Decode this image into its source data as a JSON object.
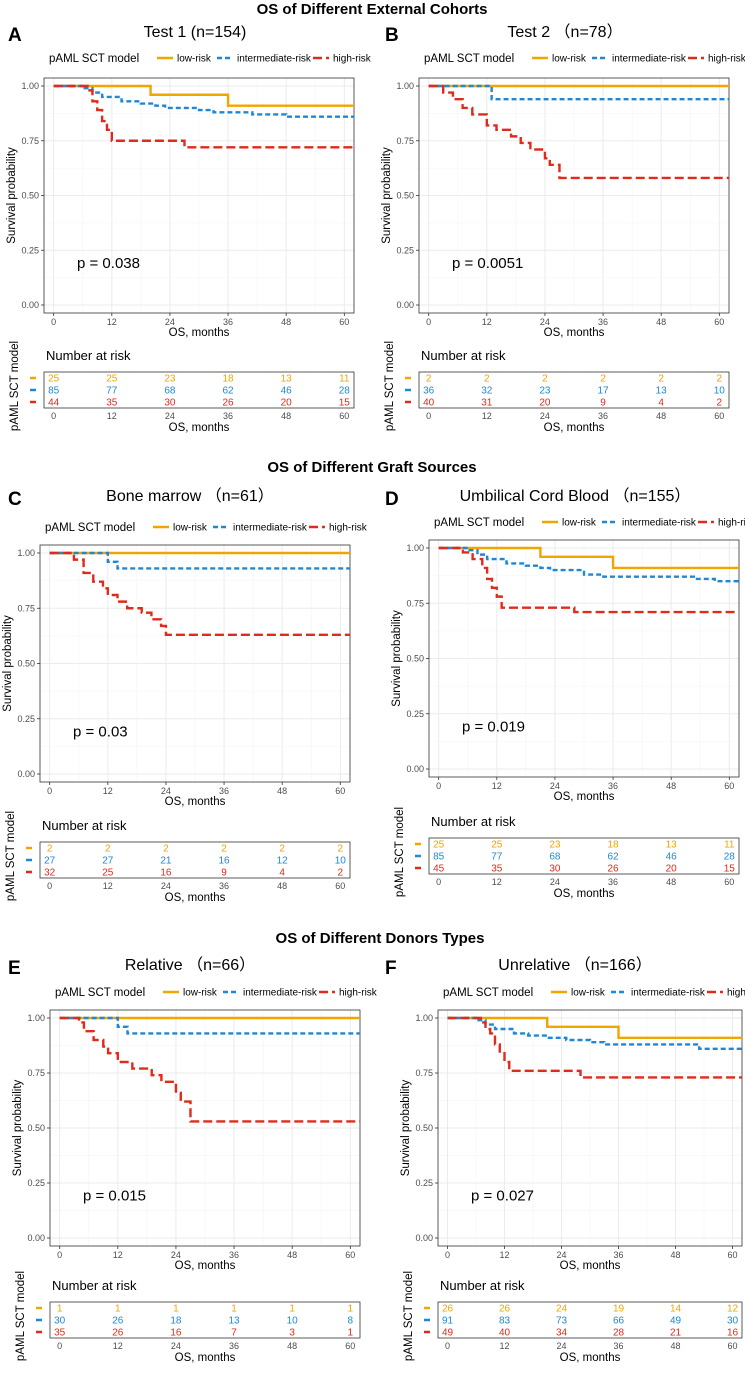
{
  "section_titles": {
    "cohorts": "OS of Different External Cohorts",
    "graft": "OS of Different Graft Sources",
    "donors": "OS of Different Donors Types"
  },
  "common": {
    "legend_title": "pAML SCT model",
    "legend_labels": [
      "low-risk",
      "intermediate-risk",
      "high-risk"
    ],
    "colors": [
      "#F0A500",
      "#1E88D6",
      "#E02A1B"
    ],
    "ylabel": "Survival probability",
    "xlabel": "OS, months",
    "risk_title": "Number at risk",
    "risk_ylabel": "pAML SCT model",
    "x_ticks": [
      "0",
      "12",
      "24",
      "36",
      "48",
      "60"
    ],
    "y_ticks": [
      "0.00",
      "0.25",
      "0.50",
      "0.75",
      "1.00"
    ]
  },
  "chart_data": [
    {
      "type": "line",
      "letter": "A",
      "title": "Test 1 (n=154)",
      "pvalue": "p = 0.038",
      "xlim": [
        0,
        62
      ],
      "ylim": [
        0,
        1
      ],
      "series": [
        {
          "name": "low-risk",
          "steps": [
            [
              0,
              1
            ],
            [
              20,
              0.96
            ],
            [
              36,
              0.91
            ]
          ]
        },
        {
          "name": "intermediate-risk",
          "steps": [
            [
              0,
              1
            ],
            [
              6,
              0.99
            ],
            [
              8,
              0.97
            ],
            [
              10,
              0.95
            ],
            [
              14,
              0.93
            ],
            [
              18,
              0.92
            ],
            [
              21,
              0.91
            ],
            [
              23,
              0.9
            ],
            [
              30,
              0.89
            ],
            [
              33,
              0.88
            ],
            [
              41,
              0.87
            ],
            [
              48,
              0.86
            ]
          ]
        },
        {
          "name": "high-risk",
          "steps": [
            [
              0,
              1
            ],
            [
              7,
              0.98
            ],
            [
              8,
              0.93
            ],
            [
              9,
              0.89
            ],
            [
              10,
              0.84
            ],
            [
              11,
              0.8
            ],
            [
              12,
              0.75
            ],
            [
              27,
              0.72
            ]
          ]
        }
      ],
      "risk_table": [
        [
          "25",
          "25",
          "23",
          "18",
          "13",
          "11"
        ],
        [
          "85",
          "77",
          "68",
          "62",
          "46",
          "28"
        ],
        [
          "44",
          "35",
          "30",
          "26",
          "20",
          "15"
        ]
      ]
    },
    {
      "type": "line",
      "letter": "B",
      "title": "Test 2 （n=78）",
      "pvalue": "p = 0.0051",
      "xlim": [
        0,
        62
      ],
      "ylim": [
        0,
        1
      ],
      "series": [
        {
          "name": "low-risk",
          "steps": [
            [
              0,
              1
            ]
          ]
        },
        {
          "name": "intermediate-risk",
          "steps": [
            [
              0,
              1
            ],
            [
              13,
              0.94
            ]
          ]
        },
        {
          "name": "high-risk",
          "steps": [
            [
              0,
              1
            ],
            [
              3,
              0.97
            ],
            [
              5,
              0.94
            ],
            [
              7,
              0.9
            ],
            [
              9,
              0.87
            ],
            [
              12,
              0.82
            ],
            [
              14,
              0.8
            ],
            [
              17,
              0.77
            ],
            [
              19,
              0.74
            ],
            [
              21,
              0.71
            ],
            [
              24,
              0.67
            ],
            [
              25,
              0.64
            ],
            [
              27,
              0.58
            ]
          ]
        }
      ],
      "risk_table": [
        [
          "2",
          "2",
          "2",
          "2",
          "2",
          "2"
        ],
        [
          "36",
          "32",
          "23",
          "17",
          "13",
          "10"
        ],
        [
          "40",
          "31",
          "20",
          "9",
          "4",
          "2"
        ]
      ]
    },
    {
      "type": "line",
      "letter": "C",
      "title": "Bone marrow （n=61）",
      "pvalue": "p = 0.03",
      "xlim": [
        0,
        62
      ],
      "ylim": [
        0,
        1
      ],
      "series": [
        {
          "name": "low-risk",
          "steps": [
            [
              0,
              1
            ]
          ]
        },
        {
          "name": "intermediate-risk",
          "steps": [
            [
              0,
              1
            ],
            [
              12,
              0.96
            ],
            [
              14,
              0.93
            ]
          ]
        },
        {
          "name": "high-risk",
          "steps": [
            [
              0,
              1
            ],
            [
              5,
              0.97
            ],
            [
              7,
              0.91
            ],
            [
              9,
              0.87
            ],
            [
              11,
              0.84
            ],
            [
              12,
              0.81
            ],
            [
              14,
              0.78
            ],
            [
              16,
              0.75
            ],
            [
              19,
              0.73
            ],
            [
              21,
              0.7
            ],
            [
              23,
              0.67
            ],
            [
              24,
              0.63
            ]
          ]
        }
      ],
      "risk_table": [
        [
          "2",
          "2",
          "2",
          "2",
          "2",
          "2"
        ],
        [
          "27",
          "27",
          "21",
          "16",
          "12",
          "10"
        ],
        [
          "32",
          "25",
          "16",
          "9",
          "4",
          "2"
        ]
      ]
    },
    {
      "type": "line",
      "letter": "D",
      "title": "Umbilical Cord Blood （n=155）",
      "pvalue": "p = 0.019",
      "xlim": [
        0,
        62
      ],
      "ylim": [
        0,
        1
      ],
      "series": [
        {
          "name": "low-risk",
          "steps": [
            [
              0,
              1
            ],
            [
              21,
              0.96
            ],
            [
              36,
              0.91
            ]
          ]
        },
        {
          "name": "intermediate-risk",
          "steps": [
            [
              0,
              1
            ],
            [
              6,
              0.99
            ],
            [
              8,
              0.97
            ],
            [
              10,
              0.95
            ],
            [
              14,
              0.93
            ],
            [
              18,
              0.92
            ],
            [
              21,
              0.91
            ],
            [
              23,
              0.9
            ],
            [
              30,
              0.88
            ],
            [
              34,
              0.87
            ],
            [
              41,
              0.87
            ],
            [
              53,
              0.86
            ],
            [
              57,
              0.85
            ]
          ]
        },
        {
          "name": "high-risk",
          "steps": [
            [
              0,
              1
            ],
            [
              5,
              0.98
            ],
            [
              7,
              0.95
            ],
            [
              9,
              0.91
            ],
            [
              10,
              0.86
            ],
            [
              11,
              0.82
            ],
            [
              12,
              0.78
            ],
            [
              13,
              0.73
            ],
            [
              28,
              0.71
            ]
          ]
        }
      ],
      "risk_table": [
        [
          "25",
          "25",
          "23",
          "18",
          "13",
          "11"
        ],
        [
          "85",
          "77",
          "68",
          "62",
          "46",
          "28"
        ],
        [
          "45",
          "35",
          "30",
          "26",
          "20",
          "15"
        ]
      ]
    },
    {
      "type": "line",
      "letter": "E",
      "title": "Relative （n=66）",
      "pvalue": "p = 0.015",
      "xlim": [
        0,
        62
      ],
      "ylim": [
        0,
        1
      ],
      "series": [
        {
          "name": "low-risk",
          "steps": [
            [
              0,
              1
            ]
          ]
        },
        {
          "name": "intermediate-risk",
          "steps": [
            [
              0,
              1
            ],
            [
              12,
              0.96
            ],
            [
              14,
              0.93
            ]
          ]
        },
        {
          "name": "high-risk",
          "steps": [
            [
              0,
              1
            ],
            [
              4,
              0.98
            ],
            [
              5,
              0.94
            ],
            [
              7,
              0.9
            ],
            [
              9,
              0.87
            ],
            [
              10,
              0.84
            ],
            [
              12,
              0.8
            ],
            [
              15,
              0.77
            ],
            [
              19,
              0.74
            ],
            [
              21,
              0.71
            ],
            [
              24,
              0.66
            ],
            [
              25,
              0.62
            ],
            [
              27,
              0.53
            ]
          ]
        }
      ],
      "risk_table": [
        [
          "1",
          "1",
          "1",
          "1",
          "1",
          "1"
        ],
        [
          "30",
          "26",
          "18",
          "13",
          "10",
          "8"
        ],
        [
          "35",
          "26",
          "16",
          "7",
          "3",
          "1"
        ]
      ]
    },
    {
      "type": "line",
      "letter": "F",
      "title": "Unrelative （n=166）",
      "pvalue": "p = 0.027",
      "xlim": [
        0,
        62
      ],
      "ylim": [
        0,
        1
      ],
      "series": [
        {
          "name": "low-risk",
          "steps": [
            [
              0,
              1
            ],
            [
              21,
              0.96
            ],
            [
              36,
              0.91
            ]
          ]
        },
        {
          "name": "intermediate-risk",
          "steps": [
            [
              0,
              1
            ],
            [
              6,
              0.99
            ],
            [
              8,
              0.97
            ],
            [
              10,
              0.95
            ],
            [
              14,
              0.93
            ],
            [
              17,
              0.92
            ],
            [
              21,
              0.91
            ],
            [
              25,
              0.9
            ],
            [
              30,
              0.89
            ],
            [
              33,
              0.88
            ],
            [
              41,
              0.88
            ],
            [
              53,
              0.86
            ]
          ]
        },
        {
          "name": "high-risk",
          "steps": [
            [
              0,
              1
            ],
            [
              7,
              0.98
            ],
            [
              8,
              0.95
            ],
            [
              9,
              0.93
            ],
            [
              10,
              0.88
            ],
            [
              11,
              0.84
            ],
            [
              12,
              0.8
            ],
            [
              13,
              0.76
            ],
            [
              28,
              0.73
            ]
          ]
        }
      ],
      "risk_table": [
        [
          "26",
          "26",
          "24",
          "19",
          "14",
          "12"
        ],
        [
          "91",
          "83",
          "73",
          "66",
          "49",
          "30"
        ],
        [
          "49",
          "40",
          "34",
          "28",
          "21",
          "16"
        ]
      ]
    }
  ]
}
